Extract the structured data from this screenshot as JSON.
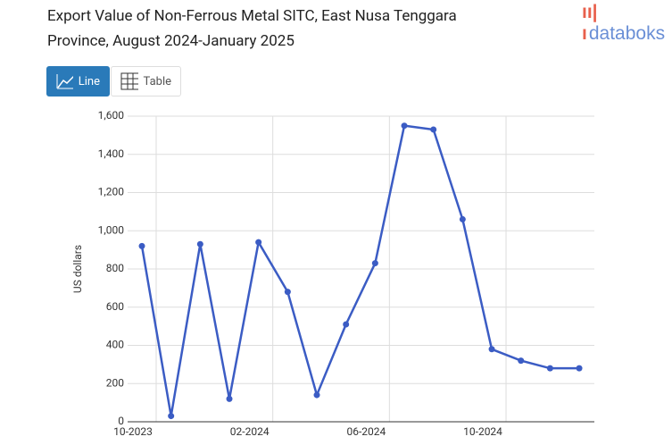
{
  "ui": {
    "logo": "databoks",
    "buttons": [
      "Line",
      "Table"
    ]
  },
  "chart_data": {
    "type": "line",
    "title": "Export Value of Non-Ferrous Metal SITC, East Nusa Tenggara Province, August 2024-January 2025",
    "y_label": "US dollars",
    "categories": [
      "10-2023",
      null,
      null,
      null,
      "02-2024",
      null,
      null,
      null,
      "06-2024",
      null,
      null,
      null,
      "10-2024",
      null,
      null,
      null
    ],
    "series": [
      {
        "name": "US dollars",
        "color": "#3b5cc4",
        "values": [
          920,
          30,
          930,
          120,
          940,
          680,
          140,
          510,
          830,
          1550,
          1530,
          1060,
          380,
          320,
          280,
          280
        ]
      }
    ],
    "ylim": [
      0,
      1600
    ],
    "yticks": [
      0,
      200,
      400,
      600,
      800,
      {
        "value": 1000,
        "label": "1,000"
      },
      {
        "value": 1200,
        "label": "1,200"
      },
      {
        "value": 1400,
        "label": "1,400"
      },
      {
        "value": 1600,
        "label": "1,600"
      }
    ],
    "grid": true
  }
}
